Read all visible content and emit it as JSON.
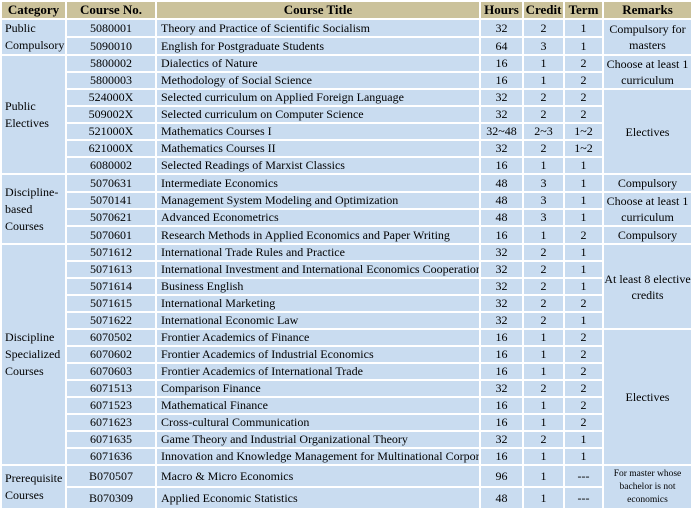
{
  "colors": {
    "header_bg": "#CBC29B",
    "cell_bg": "#C9DCF0",
    "grid": "#FFFFFF",
    "text": "#000000"
  },
  "table": {
    "headers": [
      "Category",
      "Course No.",
      "Course Title",
      "Hours",
      "Credit",
      "Term",
      "Remarks"
    ],
    "rows": [
      [
        {
          "n": "category",
          "t": "Public Compulsory",
          "rs": 2
        },
        {
          "n": "no",
          "t": "5080001"
        },
        {
          "n": "title",
          "t": "Theory and Practice of Scientific Socialism"
        },
        {
          "n": "hours",
          "t": "32"
        },
        {
          "n": "credit",
          "t": "2"
        },
        {
          "n": "term",
          "t": "1"
        },
        {
          "n": "remarks",
          "t": "Compulsory for masters",
          "rs": 2
        }
      ],
      [
        {
          "n": "no",
          "t": "5090010"
        },
        {
          "n": "title",
          "t": "English for Postgraduate Students"
        },
        {
          "n": "hours",
          "t": "64"
        },
        {
          "n": "credit",
          "t": "3"
        },
        {
          "n": "term",
          "t": "1"
        }
      ],
      [
        {
          "n": "category",
          "t": "Public Electives",
          "rs": 7
        },
        {
          "n": "no",
          "t": "5800002"
        },
        {
          "n": "title",
          "t": "Dialectics of Nature"
        },
        {
          "n": "hours",
          "t": "16"
        },
        {
          "n": "credit",
          "t": "1"
        },
        {
          "n": "term",
          "t": "2"
        },
        {
          "n": "remarks",
          "t": "Choose at least 1 curriculum",
          "rs": 2
        }
      ],
      [
        {
          "n": "no",
          "t": "5800003"
        },
        {
          "n": "title",
          "t": "Methodology of Social Science"
        },
        {
          "n": "hours",
          "t": "16"
        },
        {
          "n": "credit",
          "t": "1"
        },
        {
          "n": "term",
          "t": "2"
        }
      ],
      [
        {
          "n": "no",
          "t": "524000X"
        },
        {
          "n": "title",
          "t": "Selected curriculum on Applied Foreign Language"
        },
        {
          "n": "hours",
          "t": "32"
        },
        {
          "n": "credit",
          "t": "2"
        },
        {
          "n": "term",
          "t": "2"
        },
        {
          "n": "remarks",
          "t": "Electives",
          "rs": 5
        }
      ],
      [
        {
          "n": "no",
          "t": "509002X"
        },
        {
          "n": "title",
          "t": "Selected curriculum on Computer Science"
        },
        {
          "n": "hours",
          "t": "32"
        },
        {
          "n": "credit",
          "t": "2"
        },
        {
          "n": "term",
          "t": "2"
        }
      ],
      [
        {
          "n": "no",
          "t": "521000X"
        },
        {
          "n": "title",
          "t": "Mathematics Courses I"
        },
        {
          "n": "hours",
          "t": "32~48"
        },
        {
          "n": "credit",
          "t": "2~3"
        },
        {
          "n": "term",
          "t": "1~2"
        }
      ],
      [
        {
          "n": "no",
          "t": "621000X"
        },
        {
          "n": "title",
          "t": "Mathematics Courses II"
        },
        {
          "n": "hours",
          "t": "32"
        },
        {
          "n": "credit",
          "t": "2"
        },
        {
          "n": "term",
          "t": "1~2"
        }
      ],
      [
        {
          "n": "no",
          "t": "6080002"
        },
        {
          "n": "title",
          "t": "Selected Readings of Marxist Classics"
        },
        {
          "n": "hours",
          "t": "16"
        },
        {
          "n": "credit",
          "t": "1"
        },
        {
          "n": "term",
          "t": "1"
        }
      ],
      [
        {
          "n": "category",
          "t": "Discipline-based Courses",
          "rs": 4
        },
        {
          "n": "no",
          "t": "5070631"
        },
        {
          "n": "title",
          "t": "Intermediate Economics"
        },
        {
          "n": "hours",
          "t": "48"
        },
        {
          "n": "credit",
          "t": "3"
        },
        {
          "n": "term",
          "t": "1"
        },
        {
          "n": "remarks",
          "t": "Compulsory"
        }
      ],
      [
        {
          "n": "no",
          "t": "5070141"
        },
        {
          "n": "title",
          "t": "Management System Modeling and Optimization"
        },
        {
          "n": "hours",
          "t": "48"
        },
        {
          "n": "credit",
          "t": "3"
        },
        {
          "n": "term",
          "t": "1"
        },
        {
          "n": "remarks",
          "t": "Choose at least 1 curriculum",
          "rs": 2
        }
      ],
      [
        {
          "n": "no",
          "t": "5070621"
        },
        {
          "n": "title",
          "t": "Advanced Econometrics"
        },
        {
          "n": "hours",
          "t": "48"
        },
        {
          "n": "credit",
          "t": "3"
        },
        {
          "n": "term",
          "t": "1"
        }
      ],
      [
        {
          "n": "no",
          "t": "5070601"
        },
        {
          "n": "title",
          "t": "Research Methods in Applied Economics and Paper Writing"
        },
        {
          "n": "hours",
          "t": "16"
        },
        {
          "n": "credit",
          "t": "1"
        },
        {
          "n": "term",
          "t": "2"
        },
        {
          "n": "remarks",
          "t": "Compulsory"
        }
      ],
      [
        {
          "n": "category",
          "t": "Discipline Specialized Courses",
          "rs": 13
        },
        {
          "n": "no",
          "t": "5071612"
        },
        {
          "n": "title",
          "t": "International Trade Rules and Practice"
        },
        {
          "n": "hours",
          "t": "32"
        },
        {
          "n": "credit",
          "t": "2"
        },
        {
          "n": "term",
          "t": "1"
        },
        {
          "n": "remarks",
          "t": "At least 8 elective credits",
          "rs": 5
        }
      ],
      [
        {
          "n": "no",
          "t": "5071613"
        },
        {
          "n": "title",
          "t": "International Investment and International Economics Cooperation"
        },
        {
          "n": "hours",
          "t": "32"
        },
        {
          "n": "credit",
          "t": "2"
        },
        {
          "n": "term",
          "t": "1"
        }
      ],
      [
        {
          "n": "no",
          "t": "5071614"
        },
        {
          "n": "title",
          "t": "Business English"
        },
        {
          "n": "hours",
          "t": "32"
        },
        {
          "n": "credit",
          "t": "2"
        },
        {
          "n": "term",
          "t": "1"
        }
      ],
      [
        {
          "n": "no",
          "t": "5071615"
        },
        {
          "n": "title",
          "t": "International Marketing"
        },
        {
          "n": "hours",
          "t": "32"
        },
        {
          "n": "credit",
          "t": "2"
        },
        {
          "n": "term",
          "t": "2"
        }
      ],
      [
        {
          "n": "no",
          "t": "5071622"
        },
        {
          "n": "title",
          "t": "International Economic Law"
        },
        {
          "n": "hours",
          "t": "32"
        },
        {
          "n": "credit",
          "t": "2"
        },
        {
          "n": "term",
          "t": "1"
        }
      ],
      [
        {
          "n": "no",
          "t": "6070502"
        },
        {
          "n": "title",
          "t": "Frontier Academics  of Finance"
        },
        {
          "n": "hours",
          "t": "16"
        },
        {
          "n": "credit",
          "t": "1"
        },
        {
          "n": "term",
          "t": "2"
        },
        {
          "n": "remarks",
          "t": "Electives",
          "rs": 8
        }
      ],
      [
        {
          "n": "no",
          "t": "6070602"
        },
        {
          "n": "title",
          "t": "Frontier Academics  of Industrial Economics"
        },
        {
          "n": "hours",
          "t": "16"
        },
        {
          "n": "credit",
          "t": "1"
        },
        {
          "n": "term",
          "t": "2"
        }
      ],
      [
        {
          "n": "no",
          "t": "6070603"
        },
        {
          "n": "title",
          "t": "Frontier Academics  of International Trade"
        },
        {
          "n": "hours",
          "t": "16"
        },
        {
          "n": "credit",
          "t": "1"
        },
        {
          "n": "term",
          "t": "2"
        }
      ],
      [
        {
          "n": "no",
          "t": "6071513"
        },
        {
          "n": "title",
          "t": "Comparison Finance"
        },
        {
          "n": "hours",
          "t": "32"
        },
        {
          "n": "credit",
          "t": "2"
        },
        {
          "n": "term",
          "t": "2"
        }
      ],
      [
        {
          "n": "no",
          "t": "6071523"
        },
        {
          "n": "title",
          "t": "Mathematical Finance"
        },
        {
          "n": "hours",
          "t": "16"
        },
        {
          "n": "credit",
          "t": "1"
        },
        {
          "n": "term",
          "t": "2"
        }
      ],
      [
        {
          "n": "no",
          "t": "6071623"
        },
        {
          "n": "title",
          "t": "Cross-cultural Communication"
        },
        {
          "n": "hours",
          "t": "16"
        },
        {
          "n": "credit",
          "t": "1"
        },
        {
          "n": "term",
          "t": "2"
        }
      ],
      [
        {
          "n": "no",
          "t": "6071635"
        },
        {
          "n": "title",
          "t": "Game Theory and Industrial Organizational Theory"
        },
        {
          "n": "hours",
          "t": "32"
        },
        {
          "n": "credit",
          "t": "2"
        },
        {
          "n": "term",
          "t": "1"
        }
      ],
      [
        {
          "n": "no",
          "t": "6071636"
        },
        {
          "n": "title",
          "t": "Innovation and Knowledge Management for Multinational Corporation"
        },
        {
          "n": "hours",
          "t": "16"
        },
        {
          "n": "credit",
          "t": "1"
        },
        {
          "n": "term",
          "t": "1"
        }
      ],
      [
        {
          "n": "category",
          "t": "Prerequisite Courses",
          "rs": 2
        },
        {
          "n": "no",
          "t": "B070507"
        },
        {
          "n": "title",
          "t": "Macro & Micro Economics"
        },
        {
          "n": "hours",
          "t": "96"
        },
        {
          "n": "credit",
          "t": "1"
        },
        {
          "n": "term",
          "t": "---"
        },
        {
          "n": "remarks",
          "t": "For master whose bachelor is not economics",
          "rs": 2,
          "small": true
        }
      ],
      [
        {
          "n": "no",
          "t": "B070309"
        },
        {
          "n": "title",
          "t": "Applied Economic Statistics"
        },
        {
          "n": "hours",
          "t": "48"
        },
        {
          "n": "credit",
          "t": "1"
        },
        {
          "n": "term",
          "t": "---"
        }
      ]
    ]
  }
}
